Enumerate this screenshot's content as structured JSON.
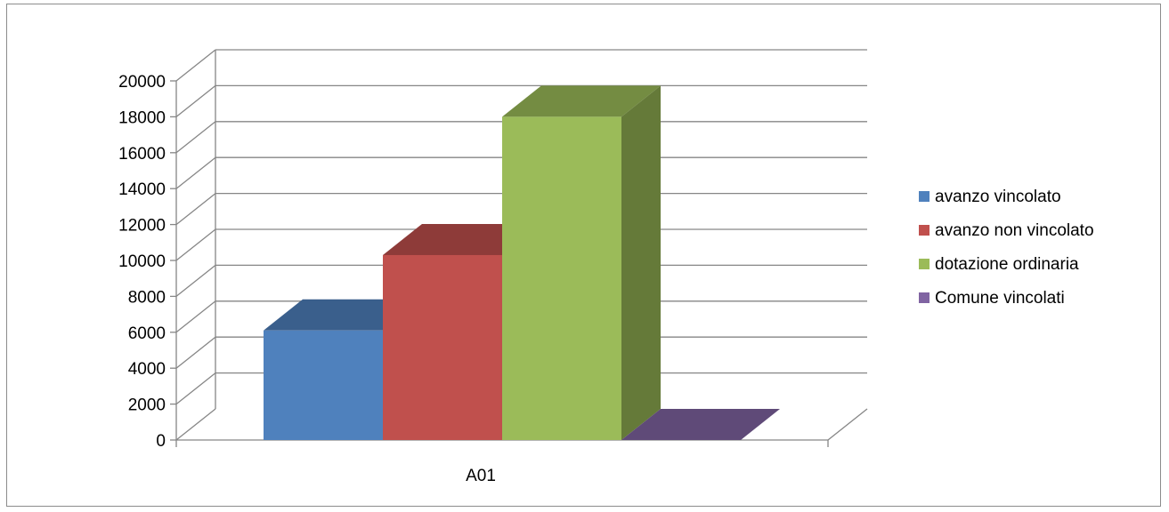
{
  "chart_data": {
    "type": "bar",
    "style": "3d-clustered-column",
    "categories": [
      "A01"
    ],
    "series": [
      {
        "name": "avanzo vincolato",
        "values": [
          6100
        ],
        "color": "#4F81BD",
        "top_color": "#3A5F8C",
        "side_color": "#35577F"
      },
      {
        "name": "avanzo non vincolato",
        "values": [
          10300
        ],
        "color": "#C0504D",
        "top_color": "#8E3B39",
        "side_color": "#823634"
      },
      {
        "name": "dotazione ordinaria",
        "values": [
          18000
        ],
        "color": "#9BBB59",
        "top_color": "#748C42",
        "side_color": "#657A39"
      },
      {
        "name": "Comune vincolati",
        "values": [
          0
        ],
        "color": "#8064A2",
        "top_color": "#5F4A78",
        "side_color": "#56436D"
      }
    ],
    "ylim": [
      0,
      20000
    ],
    "yticks": [
      "0",
      "2000",
      "4000",
      "6000",
      "8000",
      "10000",
      "12000",
      "14000",
      "16000",
      "18000",
      "20000"
    ],
    "grid": true,
    "legend_position": "right"
  }
}
